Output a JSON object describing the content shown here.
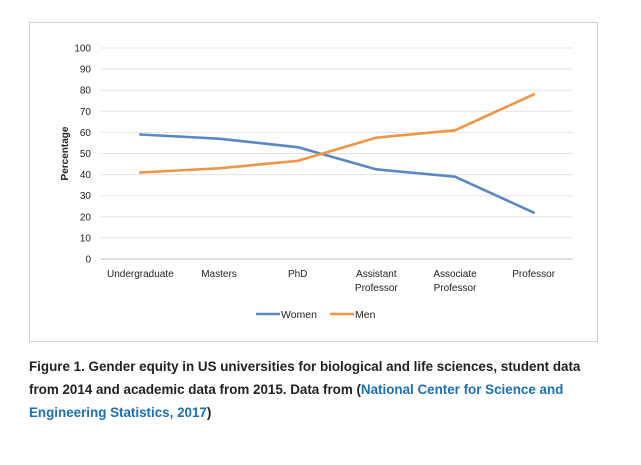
{
  "chart_data": {
    "type": "line",
    "title": "",
    "xlabel": "",
    "ylabel": "Percentage",
    "ylim": [
      0,
      100
    ],
    "yticks": [
      "0",
      "10",
      "20",
      "30",
      "40",
      "50",
      "60",
      "70",
      "80",
      "90",
      "100"
    ],
    "categories": [
      [
        "Undergraduate"
      ],
      [
        "Masters"
      ],
      [
        "PhD"
      ],
      [
        "Assistant",
        "Professor"
      ],
      [
        "Associate",
        "Professor"
      ],
      [
        "Professor"
      ]
    ],
    "series": [
      {
        "name": "Women",
        "color": "#5b87c5",
        "values": [
          59,
          57,
          53,
          42.5,
          39,
          22
        ]
      },
      {
        "name": "Men",
        "color": "#ee9645",
        "values": [
          41,
          43,
          46.5,
          57.5,
          61,
          78
        ]
      }
    ],
    "legend_position": "bottom-center",
    "grid": true
  },
  "caption": {
    "prefix": "Figure 1. Gender equity in US universities for biological and life sciences, student data from 2014 and academic data from 2015. Data from (",
    "link_text": "National Center for Science and Engineering Statistics, 2017",
    "suffix": ")"
  }
}
